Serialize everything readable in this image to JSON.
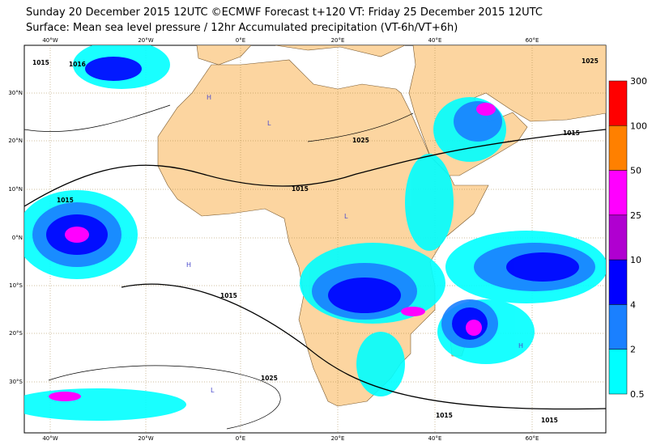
{
  "header": {
    "line1": "Sunday 20 December 2015 12UTC ©ECMWF Forecast t+120 VT: Friday 25 December 2015 12UTC",
    "line2": "Surface: Mean sea level pressure / 12hr Accumulated precipitation (VT-6h/VT+6h)"
  },
  "map": {
    "lon_labels": [
      "40°W",
      "20°W",
      "0°E",
      "20°E",
      "40°E",
      "60°E"
    ],
    "lat_labels": [
      "30°N",
      "20°N",
      "10°N",
      "0°N",
      "10°S",
      "20°S",
      "30°S"
    ],
    "isobar_labels": [
      "1016",
      "1015",
      "1025",
      "1025",
      "1015",
      "1015",
      "1015",
      "1025",
      "1015",
      "1015",
      "1015"
    ],
    "pressure_centers": [
      "H",
      "L"
    ]
  },
  "colorbar": {
    "levels": [
      300,
      100,
      50,
      25,
      10,
      4,
      2,
      0.5
    ],
    "colors": [
      "#ff0000",
      "#ff8000",
      "#ff00ff",
      "#b000d0",
      "#0000ff",
      "#1a80ff",
      "#00ffff"
    ]
  }
}
